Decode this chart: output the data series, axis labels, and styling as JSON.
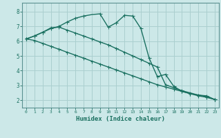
{
  "xlabel": "Humidex (Indice chaleur)",
  "bg_color": "#cce8e8",
  "grid_color": "#aacfcf",
  "line_color": "#1a7060",
  "spine_color": "#5a9090",
  "xlim": [
    -0.5,
    23.5
  ],
  "ylim": [
    1.5,
    8.6
  ],
  "xticks": [
    0,
    1,
    2,
    3,
    4,
    5,
    6,
    7,
    8,
    9,
    10,
    11,
    12,
    13,
    14,
    15,
    16,
    17,
    18,
    19,
    20,
    21,
    22,
    23
  ],
  "yticks": [
    2,
    3,
    4,
    5,
    6,
    7,
    8
  ],
  "line1_x": [
    0,
    1,
    2,
    3,
    4,
    5,
    6,
    7,
    8,
    9,
    10,
    11,
    12,
    13,
    14,
    15,
    16,
    17,
    18,
    19,
    20,
    21,
    22,
    23
  ],
  "line1_y": [
    6.15,
    6.35,
    6.6,
    6.85,
    7.0,
    7.3,
    7.55,
    7.7,
    7.8,
    7.85,
    6.95,
    7.25,
    7.75,
    7.7,
    6.85,
    4.85,
    3.6,
    3.75,
    2.95,
    2.6,
    2.45,
    2.35,
    2.3,
    2.05
  ],
  "line1_mx": [
    0,
    1,
    2,
    3,
    4,
    5,
    6,
    7,
    9,
    10,
    11,
    12,
    13,
    14,
    15,
    16,
    17,
    18,
    19,
    20,
    21,
    22,
    23
  ],
  "line1_my": [
    6.15,
    6.35,
    6.6,
    6.85,
    7.0,
    7.3,
    7.55,
    7.7,
    7.85,
    6.95,
    7.25,
    7.75,
    7.7,
    6.85,
    4.85,
    3.6,
    3.75,
    2.95,
    2.6,
    2.45,
    2.35,
    2.3,
    2.05
  ],
  "line2_x": [
    0,
    1,
    2,
    3,
    4,
    5,
    6,
    7,
    8,
    9,
    10,
    11,
    12,
    13,
    14,
    15,
    16,
    17,
    18,
    19,
    20,
    21,
    22,
    23
  ],
  "line2_y": [
    6.15,
    6.05,
    5.85,
    5.65,
    5.45,
    5.25,
    5.05,
    4.85,
    4.65,
    4.45,
    4.25,
    4.05,
    3.85,
    3.65,
    3.45,
    3.25,
    3.05,
    2.9,
    2.75,
    2.6,
    2.45,
    2.3,
    2.2,
    2.05
  ],
  "line2_mx": [
    0,
    1,
    2,
    3,
    4,
    5,
    6,
    7,
    8,
    9,
    10,
    11,
    12,
    13,
    14,
    15,
    16,
    17,
    18,
    19,
    20,
    21,
    22,
    23
  ],
  "line2_my": [
    6.15,
    6.05,
    5.85,
    5.65,
    5.45,
    5.25,
    5.05,
    4.85,
    4.65,
    4.45,
    4.25,
    4.05,
    3.85,
    3.65,
    3.45,
    3.25,
    3.05,
    2.9,
    2.75,
    2.6,
    2.45,
    2.3,
    2.2,
    2.05
  ],
  "line3_x": [
    0,
    1,
    2,
    3,
    4,
    5,
    6,
    7,
    8,
    9,
    10,
    11,
    12,
    13,
    14,
    15,
    16,
    17,
    18,
    19,
    20,
    21,
    22,
    23
  ],
  "line3_y": [
    6.15,
    6.35,
    6.6,
    6.9,
    6.95,
    6.75,
    6.55,
    6.35,
    6.15,
    5.95,
    5.75,
    5.5,
    5.25,
    5.0,
    4.75,
    4.5,
    4.25,
    3.05,
    2.85,
    2.65,
    2.5,
    2.35,
    2.25,
    2.05
  ],
  "line3_mx": [
    0,
    1,
    2,
    3,
    4,
    5,
    6,
    7,
    8,
    9,
    10,
    11,
    12,
    13,
    14,
    15,
    16,
    17,
    18,
    19,
    20,
    21,
    22,
    23
  ],
  "line3_my": [
    6.15,
    6.35,
    6.6,
    6.9,
    6.95,
    6.75,
    6.55,
    6.35,
    6.15,
    5.95,
    5.75,
    5.5,
    5.25,
    5.0,
    4.75,
    4.5,
    4.25,
    3.05,
    2.85,
    2.65,
    2.5,
    2.35,
    2.25,
    2.05
  ]
}
